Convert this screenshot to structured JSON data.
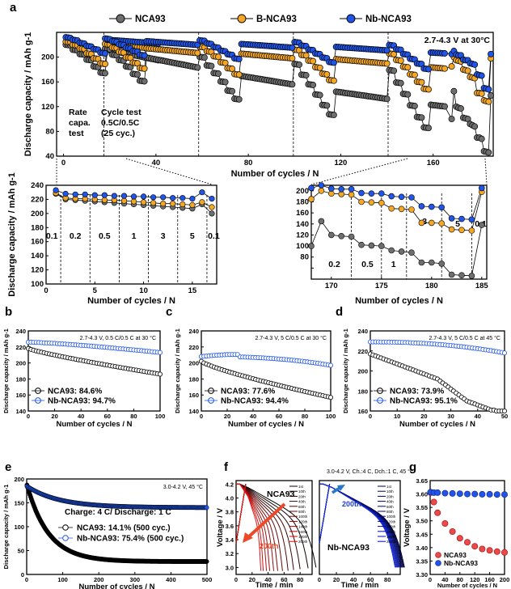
{
  "colors": {
    "nca93": "#6e6e6e",
    "b_nca93": "#f5a623",
    "nb_nca93": "#1f55e8",
    "black": "#000000",
    "red_arrow": "#ea4a2a"
  },
  "panel_letters": [
    "a",
    "b",
    "c",
    "d",
    "e",
    "f",
    "g"
  ],
  "chart_data": [
    {
      "id": "a-main",
      "type": "line",
      "legend": [
        "NCA93",
        "B-NCA93",
        "Nb-NCA93"
      ],
      "condition": "2.7-4.3 V at 30°C",
      "xlabel": "Number of cycles / N",
      "ylabel": "Discharge capacity / mAh g-1",
      "xlim": [
        -3,
        186
      ],
      "ylim": [
        40,
        240
      ],
      "xticks": [
        0,
        40,
        80,
        120,
        160
      ],
      "yticks": [
        40,
        80,
        120,
        160,
        200
      ],
      "annotations": [
        [
          "Rate",
          "capa.",
          "test"
        ],
        [
          "Cycle test",
          "0.5C/0.5C",
          "(25 cyc.)"
        ]
      ],
      "block_starts": [
        1,
        18,
        59,
        100,
        141
      ],
      "rate_starts": [
        1,
        4,
        7,
        10,
        13,
        16
      ],
      "blocks": {
        "nca93": {
          "rate": [
            220,
            212,
            205,
            196,
            185,
            175,
            220
          ],
          "cyc_start": 212,
          "cyc_end": 195
        },
        "b_nca93": {
          "rate": [
            225,
            220,
            214,
            206,
            198,
            190,
            225
          ],
          "cyc_start": 221,
          "cyc_end": 213
        },
        "nb_nca93": {
          "rate": [
            232,
            228,
            223,
            218,
            213,
            207,
            232
          ],
          "cyc_start": 228,
          "cyc_end": 222
        }
      },
      "final_block": {
        "x": [
          168,
          169,
          170,
          171,
          172,
          173,
          174,
          175,
          176,
          177,
          178,
          179,
          180,
          181,
          182,
          183,
          184,
          185
        ],
        "nca93": [
          100,
          145,
          120,
          118,
          117,
          102,
          101,
          100,
          92,
          90,
          88,
          70,
          70,
          68,
          48,
          47,
          46,
          138
        ],
        "b_nca93": [
          185,
          200,
          195,
          194,
          193,
          180,
          179,
          178,
          168,
          167,
          166,
          142,
          142,
          141,
          130,
          129,
          128,
          198
        ],
        "nb_nca93": [
          205,
          210,
          204,
          203,
          203,
          196,
          195,
          195,
          190,
          189,
          188,
          172,
          171,
          170,
          150,
          149,
          148,
          205
        ]
      }
    },
    {
      "id": "a-inset-left",
      "type": "line",
      "xlabel": "Number of cycles / N",
      "ylabel": "Discharge capacity / mAh g-1",
      "xlim": [
        0,
        17.5
      ],
      "ylim": [
        100,
        240
      ],
      "xticks": [
        0,
        5,
        10,
        15
      ],
      "yticks": [
        100,
        120,
        140,
        160,
        180,
        200,
        220,
        240
      ],
      "rate_labels": [
        "0.1",
        "0.2",
        "0.5",
        "1",
        "3",
        "5",
        "0.1"
      ],
      "dividers": [
        1.5,
        4.5,
        7.5,
        10.5,
        13.5,
        16.5
      ],
      "x": [
        1,
        2,
        3,
        4,
        5,
        6,
        7,
        8,
        9,
        10,
        11,
        12,
        13,
        14,
        15,
        16,
        17
      ],
      "series": [
        {
          "name": "NCA93",
          "values": [
            228,
            220,
            219,
            218,
            217,
            216,
            215,
            214,
            213,
            212,
            211,
            210,
            209,
            208,
            207,
            213,
            200
          ]
        },
        {
          "name": "B-NCA93",
          "values": [
            229,
            222,
            221,
            221,
            220,
            219,
            219,
            218,
            217,
            216,
            215,
            214,
            214,
            213,
            212,
            216,
            209
          ]
        },
        {
          "name": "Nb-NCA93",
          "values": [
            233,
            228,
            227,
            227,
            226,
            226,
            225,
            225,
            224,
            224,
            223,
            223,
            222,
            222,
            221,
            230,
            221
          ]
        }
      ]
    },
    {
      "id": "a-inset-right",
      "type": "line",
      "xlabel": "Number of cycles / N",
      "ylabel": "",
      "xlim": [
        168,
        185.5
      ],
      "ylim": [
        40,
        210
      ],
      "xticks": [
        170,
        175,
        180,
        185
      ],
      "yticks": [
        40,
        60,
        80,
        100,
        120,
        140,
        160,
        180,
        200
      ],
      "rate_labels": [
        "0.2",
        "0.5",
        "1",
        "3",
        "5",
        "0.1"
      ],
      "dividers": [
        172,
        175,
        177.5,
        181,
        184
      ]
    },
    {
      "id": "b",
      "type": "line",
      "condition": "2.7-4.3 V, 0.5 C/0.5 C at 30 °C",
      "xlabel": "Number of cycles / N",
      "ylabel": "Discharge capacity / mAh g-1",
      "xlim": [
        0,
        100
      ],
      "ylim": [
        140,
        240
      ],
      "xticks": [
        0,
        20,
        40,
        60,
        80,
        100
      ],
      "yticks": [
        140,
        160,
        180,
        200,
        220,
        240
      ],
      "series": [
        {
          "name": "NCA93: 84.6%",
          "start": 218,
          "end": 186,
          "curve": 0.85
        },
        {
          "name": "Nb-NCA93: 94.7%",
          "start": 226,
          "end": 213,
          "curve": 1.3
        }
      ]
    },
    {
      "id": "c",
      "type": "line",
      "condition": "2.7-4.3 V, 5 C/0.5 C at 30 °C",
      "xlabel": "Number of cycles / N",
      "ylabel": "Discharge capacity / mAh g-1",
      "xlim": [
        0,
        100
      ],
      "ylim": [
        140,
        240
      ],
      "xticks": [
        0,
        20,
        40,
        60,
        80,
        100
      ],
      "yticks": [
        140,
        160,
        180,
        200,
        220,
        240
      ],
      "series": [
        {
          "name": "NCA93: 77.6%",
          "start": 202,
          "end": 157,
          "curve": 0.8
        },
        {
          "name": "Nb-NCA93: 94.4%",
          "start": 208,
          "end": 197,
          "curve": 2.5,
          "peak": 211
        }
      ]
    },
    {
      "id": "d",
      "type": "line",
      "condition": "2.7-4.3 V, 5 C/0.5 C at 45 °C",
      "xlabel": "Number of cycles / N",
      "ylabel": "Discharge capacity / mAh g-1",
      "xlim": [
        0,
        50
      ],
      "ylim": [
        160,
        240
      ],
      "xticks": [
        0,
        10,
        20,
        30,
        40,
        50
      ],
      "yticks": [
        160,
        180,
        200,
        220,
        240
      ],
      "series": [
        {
          "name": "NCA93: 73.9%",
          "values": [
            217,
            216,
            215,
            214,
            213,
            212,
            211,
            210,
            209,
            208,
            207,
            206,
            205,
            204,
            203,
            202,
            201,
            200,
            199,
            198,
            197,
            196,
            195,
            194,
            193,
            192,
            190,
            188,
            186,
            184,
            182,
            180,
            178,
            176,
            174,
            172,
            170,
            169,
            168,
            167,
            166,
            165,
            164,
            163,
            162,
            161,
            161,
            160,
            160,
            160
          ]
        },
        {
          "name": "Nb-NCA93: 95.1%",
          "start": 229,
          "end": 218,
          "curve": 2.2
        }
      ]
    },
    {
      "id": "e",
      "type": "line",
      "condition": "3.0-4.2 V, 45 °C",
      "xlabel": "Number of cycles / N",
      "ylabel": "Discharge capacity / mAh g-1",
      "xlim": [
        0,
        500
      ],
      "ylim": [
        0,
        200
      ],
      "xticks": [
        0,
        100,
        200,
        300,
        400,
        500
      ],
      "yticks": [
        0,
        50,
        100,
        150,
        200
      ],
      "protocol": "Charge: 4 C/ Discharge: 1 C",
      "series": [
        {
          "name": "NCA93: 14.1% (500 cyc.)",
          "start": 190,
          "end": 27,
          "tau": 60
        },
        {
          "name": "Nb-NCA93: 75.4% (500 cyc.)",
          "start": 185,
          "end": 140,
          "tau": 90
        }
      ]
    },
    {
      "id": "f",
      "type": "line",
      "condition": "3.0-4.2 V, Ch.:4 C, Dch.:1 C, 45 °C",
      "xlabel": "Time / min",
      "ylabel": "Voltage / V",
      "ylim": [
        2.9,
        4.25
      ],
      "xlim": [
        0,
        95
      ],
      "yticks": [
        3.0,
        3.2,
        3.4,
        3.6,
        3.8,
        4.0,
        4.2
      ],
      "xticks": [
        0,
        20,
        40,
        60,
        80
      ],
      "sub_labels": [
        "NCA93",
        "Nb-NCA93"
      ],
      "arrow_labels": [
        "200th",
        "200th"
      ],
      "cycle_labels": [
        "1st",
        "10th",
        "20th",
        "40th",
        "60th",
        "80th",
        "100th",
        "120th",
        "140th",
        "160th",
        "180th",
        "200th"
      ],
      "nca93_durations": [
        85,
        75,
        65,
        57,
        50,
        43,
        37,
        32,
        27,
        23,
        19,
        16
      ],
      "nb_durations": [
        85,
        84,
        83,
        82,
        81,
        80,
        79,
        78,
        77,
        76,
        75,
        74
      ]
    },
    {
      "id": "g",
      "type": "scatter",
      "xlabel": "Number of cycles / N",
      "ylabel": "Voltage / V",
      "xlim": [
        0,
        200
      ],
      "ylim": [
        3.3,
        3.65
      ],
      "xticks": [
        0,
        40,
        80,
        120,
        160,
        200
      ],
      "yticks": [
        3.3,
        3.35,
        3.4,
        3.45,
        3.5,
        3.55,
        3.6,
        3.65
      ],
      "x": [
        1,
        10,
        20,
        40,
        60,
        80,
        100,
        120,
        140,
        160,
        180,
        200
      ],
      "series": [
        {
          "name": "NCA93",
          "values": [
            3.605,
            3.57,
            3.53,
            3.49,
            3.46,
            3.435,
            3.42,
            3.405,
            3.395,
            3.39,
            3.385,
            3.382
          ]
        },
        {
          "name": "Nb-NCA93",
          "values": [
            3.607,
            3.605,
            3.605,
            3.603,
            3.602,
            3.601,
            3.6,
            3.6,
            3.599,
            3.599,
            3.598,
            3.598
          ]
        }
      ]
    }
  ]
}
